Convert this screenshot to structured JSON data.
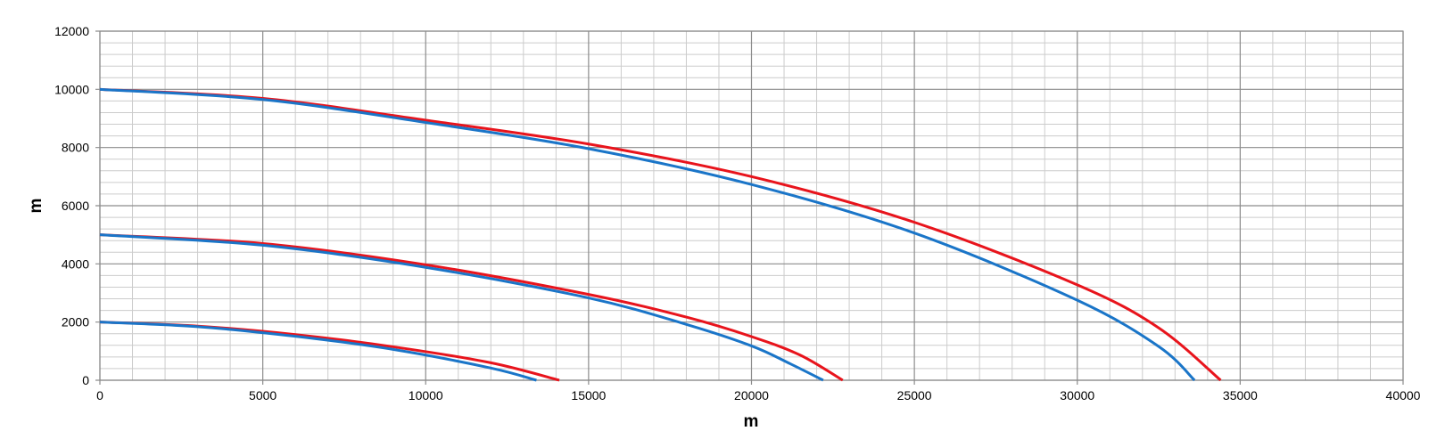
{
  "chart_data": {
    "type": "line",
    "title": "",
    "xlabel": "m",
    "ylabel": "m",
    "xlim": [
      0,
      40000
    ],
    "ylim": [
      0,
      12000
    ],
    "x_ticks": [
      "0",
      "5000",
      "10000",
      "15000",
      "20000",
      "25000",
      "30000",
      "35000",
      "40000"
    ],
    "y_ticks": [
      "0",
      "2000",
      "4000",
      "6000",
      "8000",
      "10000",
      "12000"
    ],
    "x_major_step": 5000,
    "x_minor_step": 1000,
    "y_major_step": 2000,
    "y_minor_step": 400,
    "grid": true,
    "legend": "none",
    "colors": {
      "red": "#e8141c",
      "blue": "#1a75c8",
      "grid_major": "#8c8c8c",
      "grid_minor": "#cccccc"
    },
    "series": [
      {
        "color": "red",
        "points": [
          [
            0,
            10000
          ],
          [
            5000,
            9690
          ],
          [
            10000,
            8940
          ],
          [
            15000,
            8120
          ],
          [
            20000,
            7000
          ],
          [
            25000,
            5430
          ],
          [
            30000,
            3280
          ],
          [
            32500,
            1800
          ],
          [
            34400,
            0
          ]
        ]
      },
      {
        "color": "blue",
        "points": [
          [
            0,
            10000
          ],
          [
            5000,
            9650
          ],
          [
            10000,
            8860
          ],
          [
            15000,
            7960
          ],
          [
            20000,
            6730
          ],
          [
            25000,
            5060
          ],
          [
            30000,
            2750
          ],
          [
            32500,
            1160
          ],
          [
            33600,
            0
          ]
        ]
      },
      {
        "color": "red",
        "points": [
          [
            0,
            5000
          ],
          [
            5000,
            4700
          ],
          [
            10000,
            3970
          ],
          [
            15000,
            2950
          ],
          [
            18000,
            2170
          ],
          [
            20000,
            1500
          ],
          [
            21500,
            860
          ],
          [
            22800,
            0
          ]
        ]
      },
      {
        "color": "blue",
        "points": [
          [
            0,
            5000
          ],
          [
            5000,
            4640
          ],
          [
            10000,
            3880
          ],
          [
            15000,
            2830
          ],
          [
            18000,
            1920
          ],
          [
            20000,
            1180
          ],
          [
            21200,
            560
          ],
          [
            22200,
            0
          ]
        ]
      },
      {
        "color": "red",
        "points": [
          [
            0,
            2000
          ],
          [
            3000,
            1860
          ],
          [
            6000,
            1570
          ],
          [
            9000,
            1150
          ],
          [
            12000,
            600
          ],
          [
            14100,
            0
          ]
        ]
      },
      {
        "color": "blue",
        "points": [
          [
            0,
            2000
          ],
          [
            3000,
            1840
          ],
          [
            6000,
            1510
          ],
          [
            9000,
            1060
          ],
          [
            12000,
            420
          ],
          [
            13400,
            0
          ]
        ]
      }
    ]
  }
}
